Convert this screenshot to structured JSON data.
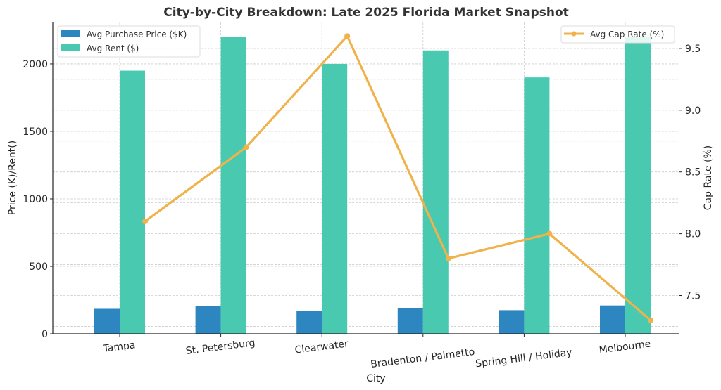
{
  "chart_data": {
    "type": "bar",
    "title": "City-by-City Breakdown: Late 2025 Florida Market Snapshot",
    "xlabel": "City",
    "ylabel": "Price (K)/Rent()",
    "ylabel_right": "Cap Rate (%)",
    "categories": [
      "Tampa",
      "St. Petersburg",
      "Clearwater",
      "Bradenton / Palmetto",
      "Spring Hill / Holiday",
      "Melbourne"
    ],
    "series": [
      {
        "name": "Avg Purchase Price ($K)",
        "type": "bar",
        "axis": "left",
        "color": "#2e86c1",
        "values": [
          185,
          205,
          170,
          190,
          175,
          210
        ]
      },
      {
        "name": "Avg Rent ($)",
        "type": "bar",
        "axis": "left",
        "color": "#48c9b0",
        "values": [
          1950,
          2200,
          2000,
          2100,
          1900,
          2200
        ]
      },
      {
        "name": "Avg Cap Rate (%)",
        "type": "line",
        "axis": "right",
        "color": "#f0b24a",
        "values": [
          8.1,
          8.7,
          9.6,
          7.8,
          8.0,
          7.3
        ]
      }
    ],
    "ylim": [
      0,
      2307
    ],
    "ylim_right": [
      7.19,
      9.71
    ],
    "yticks": [
      0,
      500,
      1000,
      1500,
      2000
    ],
    "yticks_right": [
      "7.5",
      "8.0",
      "8.5",
      "9.0",
      "9.5"
    ],
    "grid": true,
    "legend_left_placement": "top-left",
    "legend_right_placement": "top-right"
  }
}
